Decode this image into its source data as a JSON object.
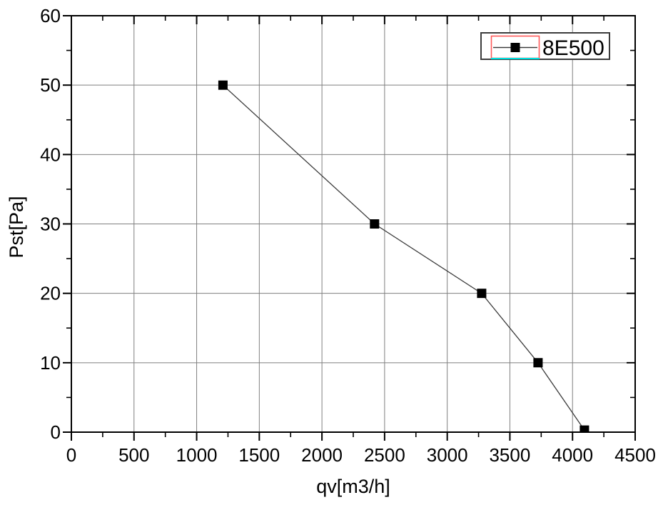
{
  "chart_data": {
    "type": "line",
    "title": "",
    "xlabel": "qv[m3/h]",
    "ylabel": "Pst[Pa]",
    "xlim": [
      0,
      4500
    ],
    "ylim": [
      0,
      60
    ],
    "x_major_step": 500,
    "x_minor_step": 250,
    "y_major_step": 10,
    "y_minor_step": 5,
    "grid": "major-gridlines-on",
    "legend_position": "top-right",
    "series": [
      {
        "name": "8E500",
        "marker": "filled-square",
        "marker_size": 13,
        "marker_color": "#000000",
        "line_color": "#3d3d3d",
        "points": [
          [
            1210,
            50
          ],
          [
            2420,
            30
          ],
          [
            3275,
            20
          ],
          [
            3725,
            10
          ],
          [
            4095,
            0.3
          ]
        ]
      }
    ]
  },
  "axes": {
    "x_tick_labels": [
      "0",
      "500",
      "1000",
      "1500",
      "2000",
      "2500",
      "3000",
      "3500",
      "4000",
      "4500"
    ],
    "y_tick_labels": [
      "0",
      "10",
      "20",
      "30",
      "40",
      "50",
      "60"
    ]
  },
  "legend": {
    "label": "8E500"
  },
  "colors": {
    "background": "#ffffff",
    "frame": "#000000",
    "gridline": "#7f7f7f",
    "legend_border": "#3c3c3c",
    "legend_selection_box": "#ff5a5a",
    "legend_selection_underline": "#00e0e0"
  }
}
